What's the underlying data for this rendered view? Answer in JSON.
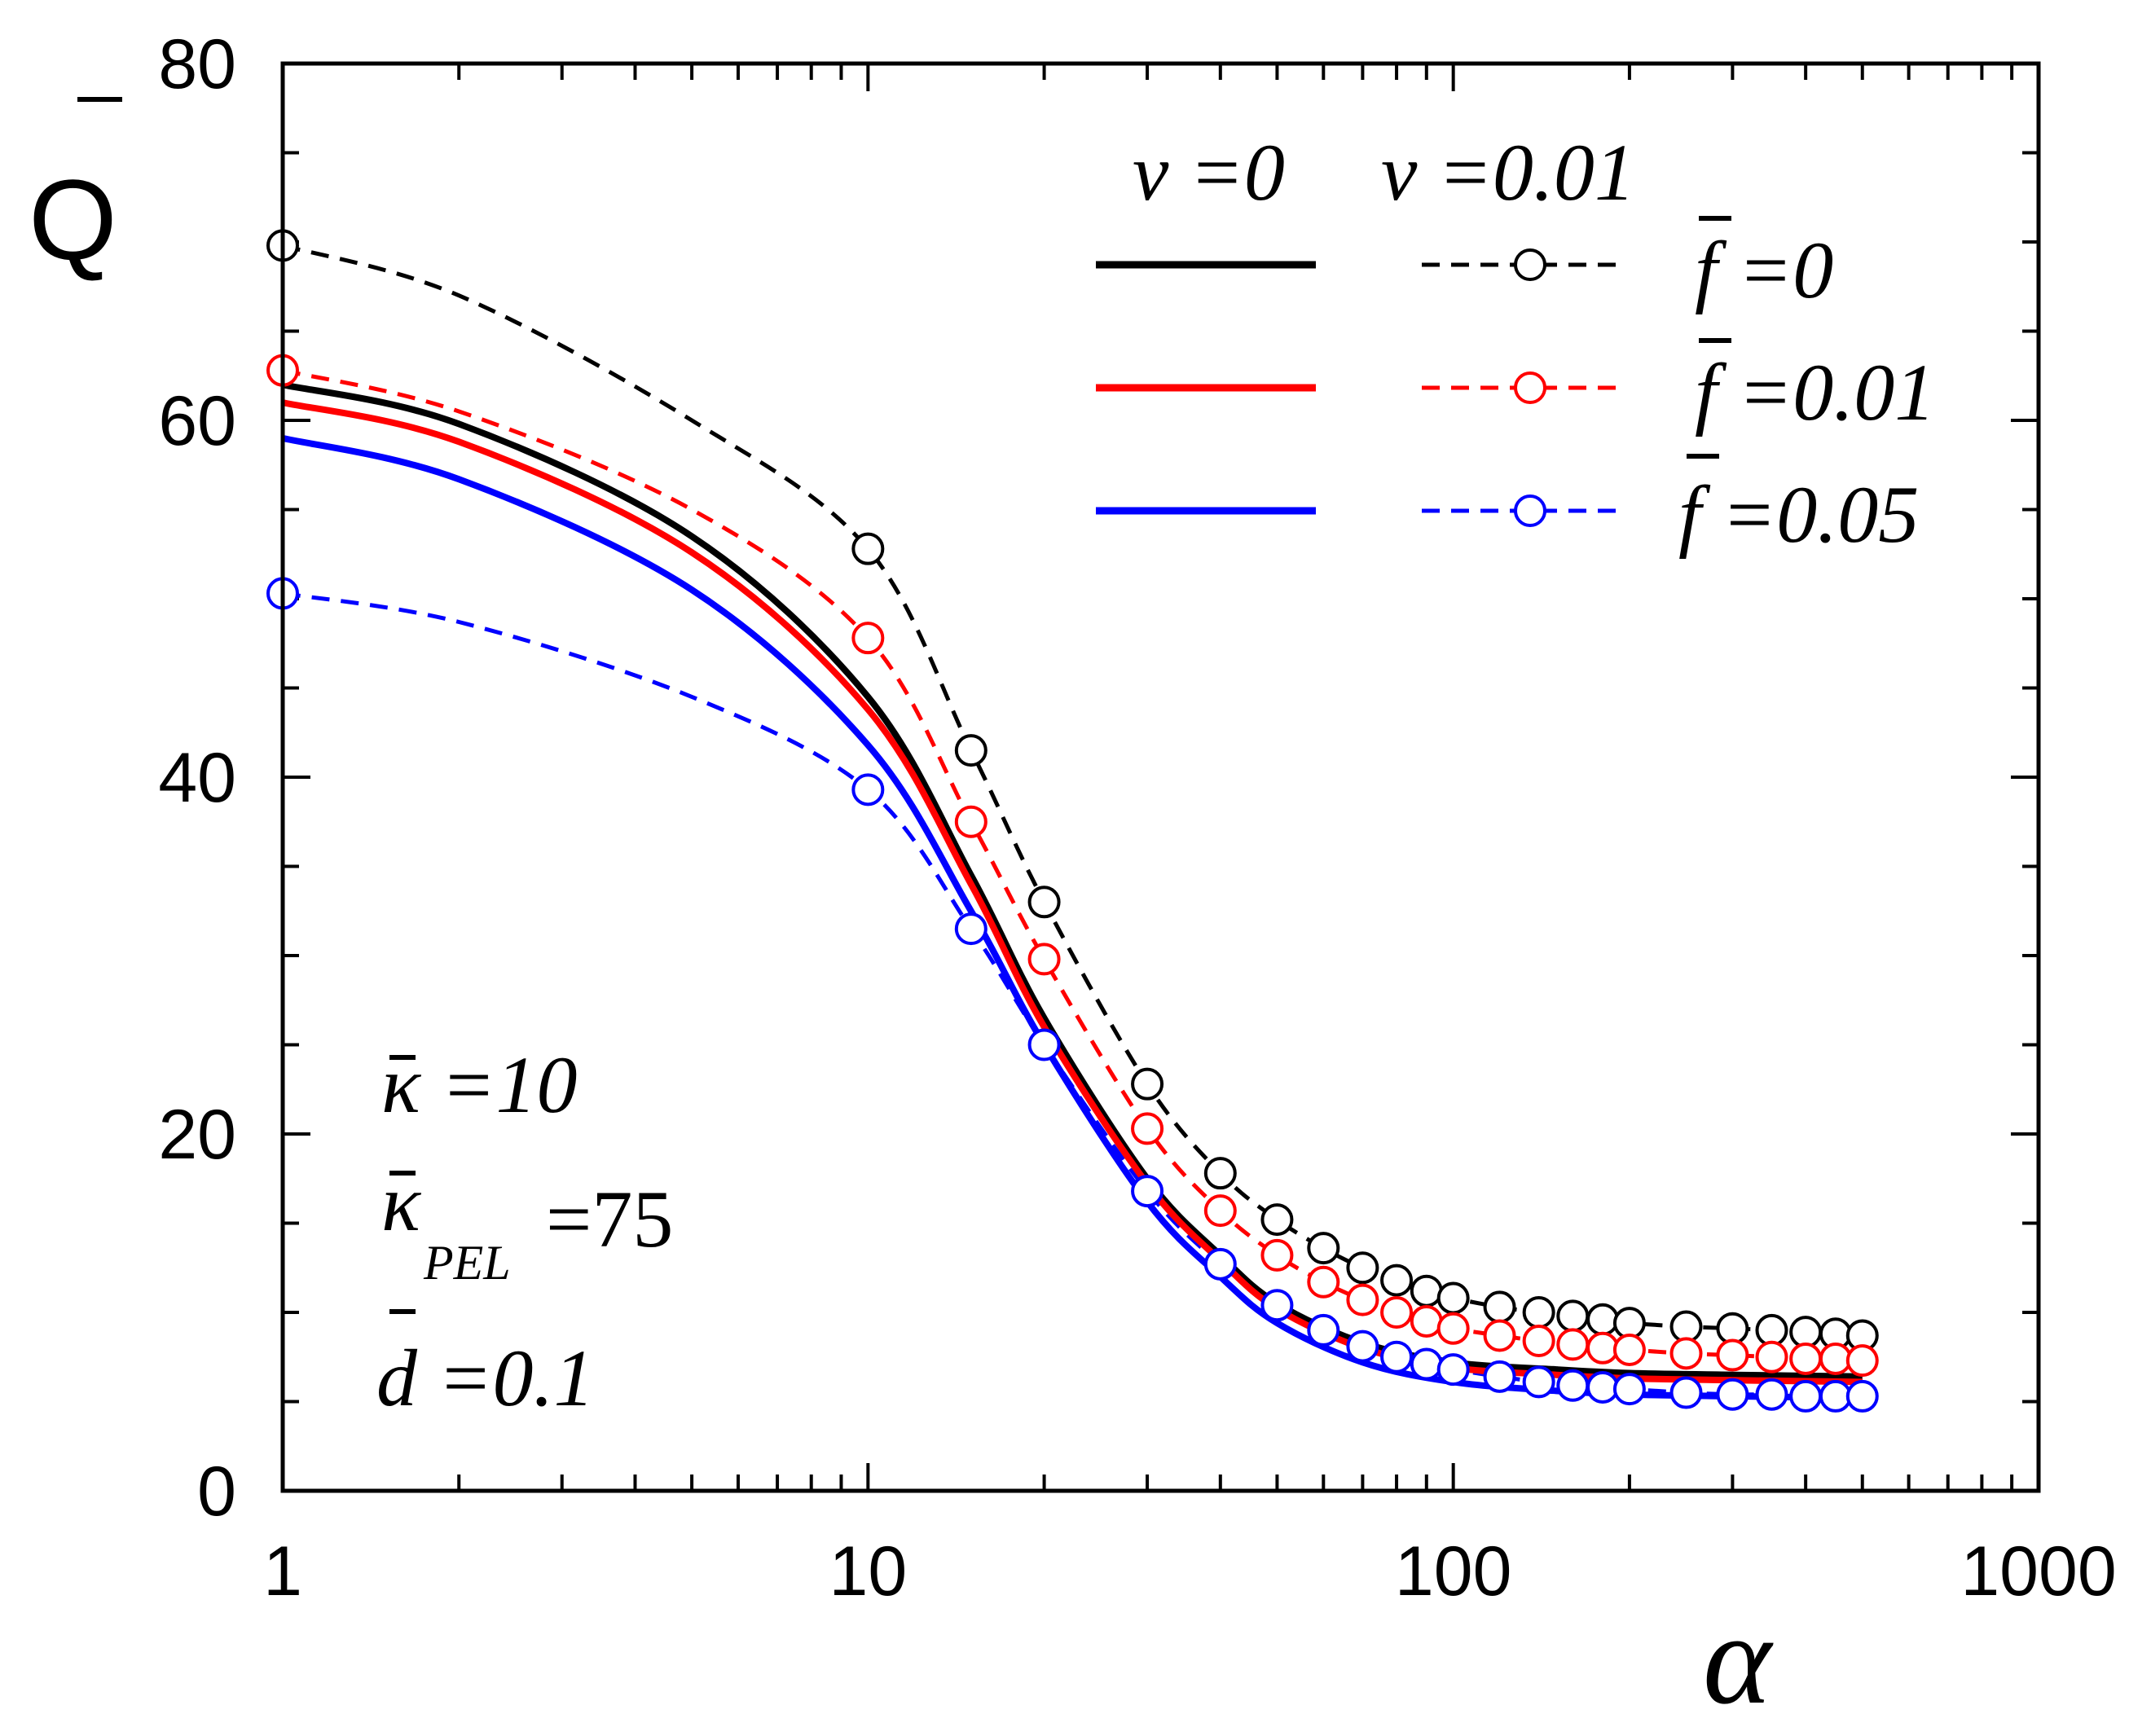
{
  "chart_data": {
    "type": "line",
    "x_scale": "log",
    "xlim": [
      1,
      1000
    ],
    "ylim": [
      0,
      80
    ],
    "x_ticks": [
      {
        "value": 1,
        "label": "1"
      },
      {
        "value": 10,
        "label": "10"
      },
      {
        "value": 100,
        "label": "100"
      },
      {
        "value": 1000,
        "label": "1000"
      }
    ],
    "y_ticks": [
      {
        "value": 0,
        "label": "0"
      },
      {
        "value": 20,
        "label": "20"
      },
      {
        "value": 40,
        "label": "40"
      },
      {
        "value": 60,
        "label": "60"
      },
      {
        "value": 80,
        "label": "80"
      }
    ],
    "xlabel": "α",
    "ylabel": "Q",
    "legend": {
      "position": "top-right",
      "header_solid": "ν =0",
      "header_dashed": "ν =0.01",
      "entries": [
        {
          "label": "f =0",
          "color": "#000000"
        },
        {
          "label": "f =0.01",
          "color": "#ff0000"
        },
        {
          "label": "f =0.05",
          "color": "#0000ff"
        }
      ]
    },
    "annotations": [
      "κ =10",
      "κ",
      "PEL",
      "=75",
      "d =0.1"
    ],
    "series": [
      {
        "name": "ν=0, f=0",
        "style": "solid",
        "color": "#000000",
        "x": [
          1,
          2,
          5,
          10,
          15,
          20,
          30,
          40,
          50,
          70,
          100,
          150,
          200,
          300,
          500
        ],
        "y": [
          62,
          59.8,
          53.5,
          44.5,
          34.5,
          26.5,
          17.5,
          13.2,
          10.5,
          8.3,
          7.2,
          6.8,
          6.6,
          6.5,
          6.4
        ]
      },
      {
        "name": "ν=0, f=0.01",
        "style": "solid",
        "color": "#ff0000",
        "x": [
          1,
          2,
          5,
          10,
          15,
          20,
          30,
          40,
          50,
          70,
          100,
          150,
          200,
          300,
          500
        ],
        "y": [
          61,
          58.8,
          52.6,
          43.8,
          34,
          26,
          17.2,
          12.9,
          10.2,
          8,
          6.9,
          6.5,
          6.3,
          6.2,
          6.1
        ]
      },
      {
        "name": "ν=0, f=0.05",
        "style": "solid",
        "color": "#0000ff",
        "x": [
          1,
          2,
          5,
          10,
          15,
          20,
          30,
          40,
          50,
          70,
          100,
          150,
          200,
          300,
          500
        ],
        "y": [
          59,
          56.7,
          50.5,
          41.8,
          32.5,
          25,
          16.2,
          12,
          9.4,
          7.2,
          6.1,
          5.6,
          5.4,
          5.3,
          5.2
        ]
      },
      {
        "name": "ν=0.01, f=0",
        "style": "dashed-markers",
        "color": "#000000",
        "x": [
          1,
          2,
          5,
          10,
          15,
          20,
          30,
          40,
          50,
          60,
          70,
          80,
          90,
          100,
          120,
          140,
          160,
          180,
          200,
          250,
          300,
          350,
          400,
          450,
          500
        ],
        "y": [
          69.8,
          67,
          60,
          52.8,
          41.5,
          33,
          22.8,
          17.8,
          15.2,
          13.6,
          12.5,
          11.8,
          11.2,
          10.8,
          10.3,
          10,
          9.8,
          9.6,
          9.4,
          9.2,
          9.1,
          9,
          8.9,
          8.8,
          8.7
        ]
      },
      {
        "name": "ν=0.01, f=0.01",
        "style": "dashed-markers",
        "color": "#ff0000",
        "x": [
          1,
          2,
          5,
          10,
          15,
          20,
          30,
          40,
          50,
          60,
          70,
          80,
          90,
          100,
          120,
          140,
          160,
          180,
          200,
          250,
          300,
          350,
          400,
          450,
          500
        ],
        "y": [
          62.8,
          60.5,
          55,
          47.8,
          37.5,
          29.8,
          20.3,
          15.7,
          13.2,
          11.7,
          10.7,
          10,
          9.5,
          9.1,
          8.7,
          8.4,
          8.2,
          8,
          7.9,
          7.7,
          7.6,
          7.5,
          7.4,
          7.4,
          7.3
        ]
      },
      {
        "name": "ν=0.01, f=0.05",
        "style": "dashed-markers",
        "color": "#0000ff",
        "x": [
          1,
          2,
          5,
          10,
          15,
          20,
          30,
          40,
          50,
          60,
          70,
          80,
          90,
          100,
          120,
          140,
          160,
          180,
          200,
          250,
          300,
          350,
          400,
          450,
          500
        ],
        "y": [
          50.3,
          48.7,
          44.5,
          39.3,
          31.5,
          25,
          16.8,
          12.7,
          10.4,
          9,
          8.1,
          7.5,
          7.1,
          6.8,
          6.4,
          6.1,
          5.9,
          5.8,
          5.7,
          5.5,
          5.4,
          5.4,
          5.3,
          5.3,
          5.3
        ]
      }
    ]
  }
}
